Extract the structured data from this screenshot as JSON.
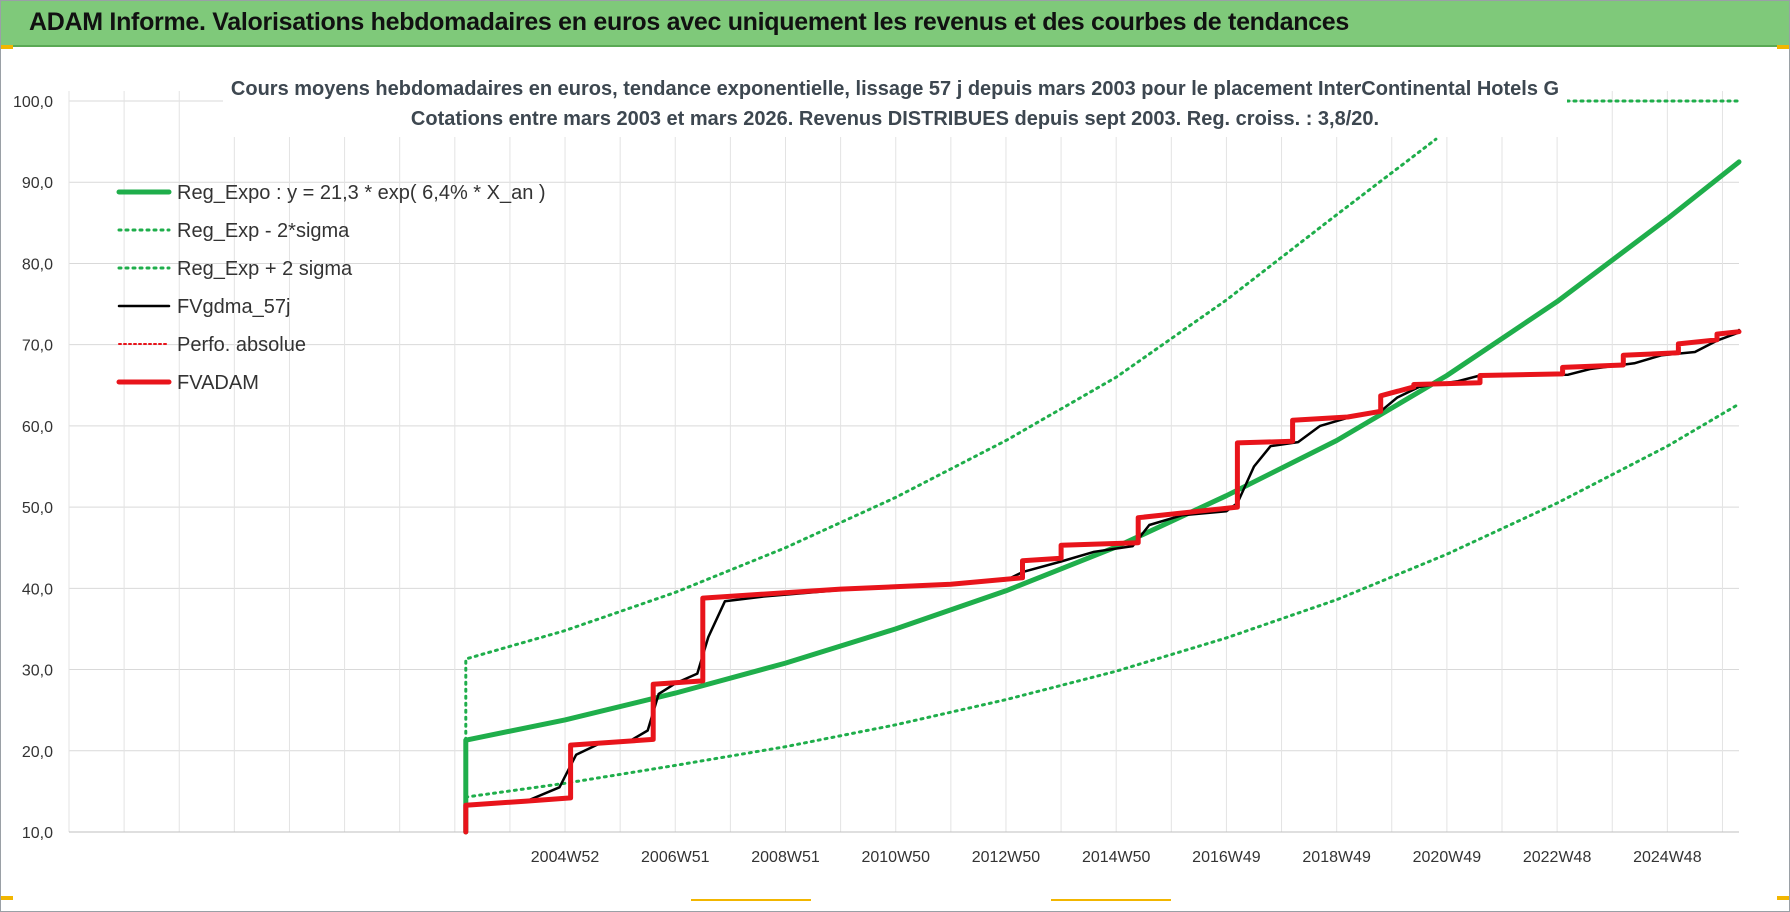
{
  "header": {
    "title": "ADAM Informe. Valorisations hebdomadaires en euros avec uniquement les revenus et des courbes de tendances"
  },
  "chart_data": {
    "type": "line",
    "title_line1": "Cours moyens hebdomadaires en euros, tendance exponentielle, lissage 57 j depuis mars 2003 pour le placement InterContinental Hotels G",
    "title_line2": "Cotations entre mars 2003 et mars 2026. Revenus DISTRIBUES depuis sept 2003. Reg. croiss. : 3,8/20.",
    "xlabel": "",
    "ylabel": "",
    "ylim": [
      10,
      100
    ],
    "xlim": [
      1996.0,
      2026.3
    ],
    "yticks": [
      "10,0",
      "20,0",
      "30,0",
      "40,0",
      "50,0",
      "60,0",
      "70,0",
      "80,0",
      "90,0",
      "100,0"
    ],
    "xticks": [
      {
        "label": "2004W52",
        "x": 2005.0
      },
      {
        "label": "2006W51",
        "x": 2007.0
      },
      {
        "label": "2008W51",
        "x": 2009.0
      },
      {
        "label": "2010W50",
        "x": 2011.0
      },
      {
        "label": "2012W50",
        "x": 2013.0
      },
      {
        "label": "2014W50",
        "x": 2015.0
      },
      {
        "label": "2016W49",
        "x": 2017.0
      },
      {
        "label": "2018W49",
        "x": 2019.0
      },
      {
        "label": "2020W49",
        "x": 2021.0
      },
      {
        "label": "2022W48",
        "x": 2023.0
      },
      {
        "label": "2024W48",
        "x": 2025.0
      }
    ],
    "grid": true,
    "legend_position": "top-left",
    "colors": {
      "trend": "#1fae4b",
      "band": "#1fae4b",
      "black": "#000000",
      "red": "#e8141b"
    },
    "series": [
      {
        "name": "Reg_Expo : y = 21,3 * exp( 6,4% *  X_an )",
        "style": "solid-thick",
        "color": "#1fae4b",
        "points": [
          [
            2003.2,
            10.0
          ],
          [
            2003.2,
            21.3
          ],
          [
            2005,
            23.8
          ],
          [
            2007,
            27.1
          ],
          [
            2009,
            30.8
          ],
          [
            2011,
            35.0
          ],
          [
            2013,
            39.7
          ],
          [
            2015,
            45.1
          ],
          [
            2017,
            51.4
          ],
          [
            2019,
            58.2
          ],
          [
            2021,
            66.2
          ],
          [
            2023,
            75.3
          ],
          [
            2025,
            85.5
          ],
          [
            2026.3,
            92.5
          ]
        ]
      },
      {
        "name": "Reg_Exp - 2*sigma",
        "style": "dotted",
        "color": "#1fae4b",
        "points": [
          [
            2003.2,
            14.3
          ],
          [
            2005,
            16.0
          ],
          [
            2007,
            18.2
          ],
          [
            2009,
            20.5
          ],
          [
            2011,
            23.2
          ],
          [
            2013,
            26.3
          ],
          [
            2015,
            29.8
          ],
          [
            2017,
            33.9
          ],
          [
            2019,
            38.6
          ],
          [
            2021,
            44.2
          ],
          [
            2023,
            50.5
          ],
          [
            2025,
            57.5
          ],
          [
            2026.3,
            62.7
          ]
        ]
      },
      {
        "name": "Reg_Exp + 2 sigma",
        "style": "dotted",
        "color": "#1fae4b",
        "points": [
          [
            2003.2,
            21.3
          ],
          [
            2003.2,
            31.3
          ],
          [
            2005,
            34.8
          ],
          [
            2007,
            39.5
          ],
          [
            2009,
            45.0
          ],
          [
            2011,
            51.2
          ],
          [
            2013,
            58.2
          ],
          [
            2015,
            66.0
          ],
          [
            2017,
            75.5
          ],
          [
            2019,
            86.0
          ],
          [
            2020.8,
            95.3
          ]
        ]
      },
      {
        "name": "FVgdma_57j",
        "style": "solid",
        "color": "#000000",
        "points": [
          [
            2003.2,
            13.3
          ],
          [
            2004.3,
            13.8
          ],
          [
            2004.9,
            15.5
          ],
          [
            2005.2,
            19.5
          ],
          [
            2005.6,
            20.8
          ],
          [
            2006.2,
            21.3
          ],
          [
            2006.5,
            22.5
          ],
          [
            2006.7,
            27.0
          ],
          [
            2007.0,
            28.3
          ],
          [
            2007.4,
            29.5
          ],
          [
            2007.6,
            34.0
          ],
          [
            2007.9,
            38.4
          ],
          [
            2008.6,
            39.0
          ],
          [
            2010.0,
            39.8
          ],
          [
            2012.0,
            40.5
          ],
          [
            2013.0,
            41.0
          ],
          [
            2013.3,
            42.0
          ],
          [
            2014.0,
            43.3
          ],
          [
            2014.6,
            44.5
          ],
          [
            2015.3,
            45.2
          ],
          [
            2015.6,
            47.8
          ],
          [
            2016.2,
            49.0
          ],
          [
            2017.0,
            49.5
          ],
          [
            2017.2,
            50.5
          ],
          [
            2017.5,
            55.0
          ],
          [
            2017.8,
            57.5
          ],
          [
            2018.3,
            58.0
          ],
          [
            2018.7,
            60.0
          ],
          [
            2019.2,
            61.0
          ],
          [
            2019.8,
            61.8
          ],
          [
            2020.1,
            63.5
          ],
          [
            2020.5,
            64.8
          ],
          [
            2021.2,
            65.5
          ],
          [
            2021.6,
            66.2
          ],
          [
            2023.2,
            66.3
          ],
          [
            2023.6,
            67.0
          ],
          [
            2024.4,
            67.7
          ],
          [
            2024.9,
            68.7
          ],
          [
            2025.5,
            69.1
          ],
          [
            2025.9,
            70.5
          ],
          [
            2026.5,
            71.5
          ],
          [
            2027.0,
            71.8
          ]
        ]
      },
      {
        "name": "Perfo. absolue",
        "style": "dotted-thin",
        "color": "#e8141b",
        "points": []
      },
      {
        "name": "FVADAM",
        "style": "solid-thick",
        "color": "#e8141b",
        "points": [
          [
            2003.2,
            10.0
          ],
          [
            2003.2,
            13.3
          ],
          [
            2004.3,
            13.8
          ],
          [
            2005.1,
            14.2
          ],
          [
            2005.1,
            20.7
          ],
          [
            2006.6,
            21.4
          ],
          [
            2006.6,
            28.2
          ],
          [
            2007.5,
            28.6
          ],
          [
            2007.5,
            38.8
          ],
          [
            2010.0,
            39.9
          ],
          [
            2012.0,
            40.5
          ],
          [
            2013.3,
            41.3
          ],
          [
            2013.3,
            43.4
          ],
          [
            2014.0,
            43.7
          ],
          [
            2014.0,
            45.3
          ],
          [
            2015.4,
            45.6
          ],
          [
            2015.4,
            48.7
          ],
          [
            2016.5,
            49.5
          ],
          [
            2017.2,
            50.0
          ],
          [
            2017.2,
            57.9
          ],
          [
            2018.2,
            58.1
          ],
          [
            2018.2,
            60.7
          ],
          [
            2019.2,
            61.1
          ],
          [
            2019.8,
            61.8
          ],
          [
            2019.8,
            63.7
          ],
          [
            2020.4,
            64.8
          ],
          [
            2020.4,
            65.1
          ],
          [
            2021.6,
            65.3
          ],
          [
            2021.6,
            66.2
          ],
          [
            2023.1,
            66.4
          ],
          [
            2023.1,
            67.2
          ],
          [
            2024.2,
            67.5
          ],
          [
            2024.2,
            68.7
          ],
          [
            2025.2,
            69.0
          ],
          [
            2025.2,
            70.1
          ],
          [
            2025.9,
            70.6
          ],
          [
            2025.9,
            71.3
          ],
          [
            2026.4,
            71.6
          ]
        ]
      }
    ]
  }
}
